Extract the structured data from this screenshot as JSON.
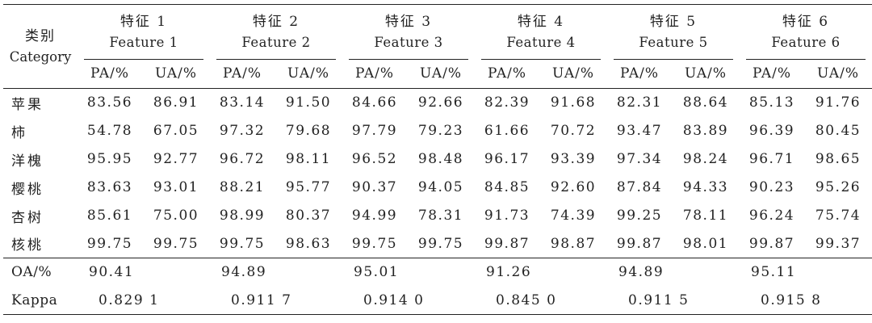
{
  "header": {
    "category_zh": "类别",
    "category_en": "Category",
    "features": [
      {
        "zh": "特征 1",
        "en": "Feature 1"
      },
      {
        "zh": "特征 2",
        "en": "Feature 2"
      },
      {
        "zh": "特征 3",
        "en": "Feature 3"
      },
      {
        "zh": "特征 4",
        "en": "Feature 4"
      },
      {
        "zh": "特征 5",
        "en": "Feature 5"
      },
      {
        "zh": "特征 6",
        "en": "Feature 6"
      }
    ],
    "pa_label": "PA/%",
    "ua_label": "UA/%"
  },
  "rows": [
    {
      "label": "苹果",
      "values": [
        "83.56",
        "86.91",
        "83.14",
        "91.50",
        "84.66",
        "92.66",
        "82.39",
        "91.68",
        "82.31",
        "88.64",
        "85.13",
        "91.76"
      ]
    },
    {
      "label": "柿",
      "values": [
        "54.78",
        "67.05",
        "97.32",
        "79.68",
        "97.79",
        "79.23",
        "61.66",
        "70.72",
        "93.47",
        "83.89",
        "96.39",
        "80.45"
      ]
    },
    {
      "label": "洋槐",
      "values": [
        "95.95",
        "92.77",
        "96.72",
        "98.11",
        "96.52",
        "98.48",
        "96.17",
        "93.39",
        "97.34",
        "98.24",
        "96.71",
        "98.65"
      ]
    },
    {
      "label": "樱桃",
      "values": [
        "83.63",
        "93.01",
        "88.21",
        "95.77",
        "90.37",
        "94.05",
        "84.85",
        "92.60",
        "87.84",
        "94.33",
        "90.23",
        "95.26"
      ]
    },
    {
      "label": "杏树",
      "values": [
        "85.61",
        "75.00",
        "98.99",
        "80.37",
        "94.99",
        "78.31",
        "91.73",
        "74.39",
        "99.25",
        "78.11",
        "96.24",
        "75.74"
      ]
    },
    {
      "label": "核桃",
      "values": [
        "99.75",
        "99.75",
        "99.75",
        "98.63",
        "99.75",
        "99.75",
        "99.87",
        "98.87",
        "99.87",
        "98.01",
        "99.87",
        "99.37"
      ]
    }
  ],
  "oa": {
    "label": "OA/%",
    "values": [
      "90.41",
      "94.89",
      "95.01",
      "91.26",
      "94.89",
      "95.11"
    ]
  },
  "kappa": {
    "label": "Kappa",
    "values": [
      "0.829 1",
      "0.911 7",
      "0.914 0",
      "0.845 0",
      "0.911 5",
      "0.915 8"
    ]
  }
}
